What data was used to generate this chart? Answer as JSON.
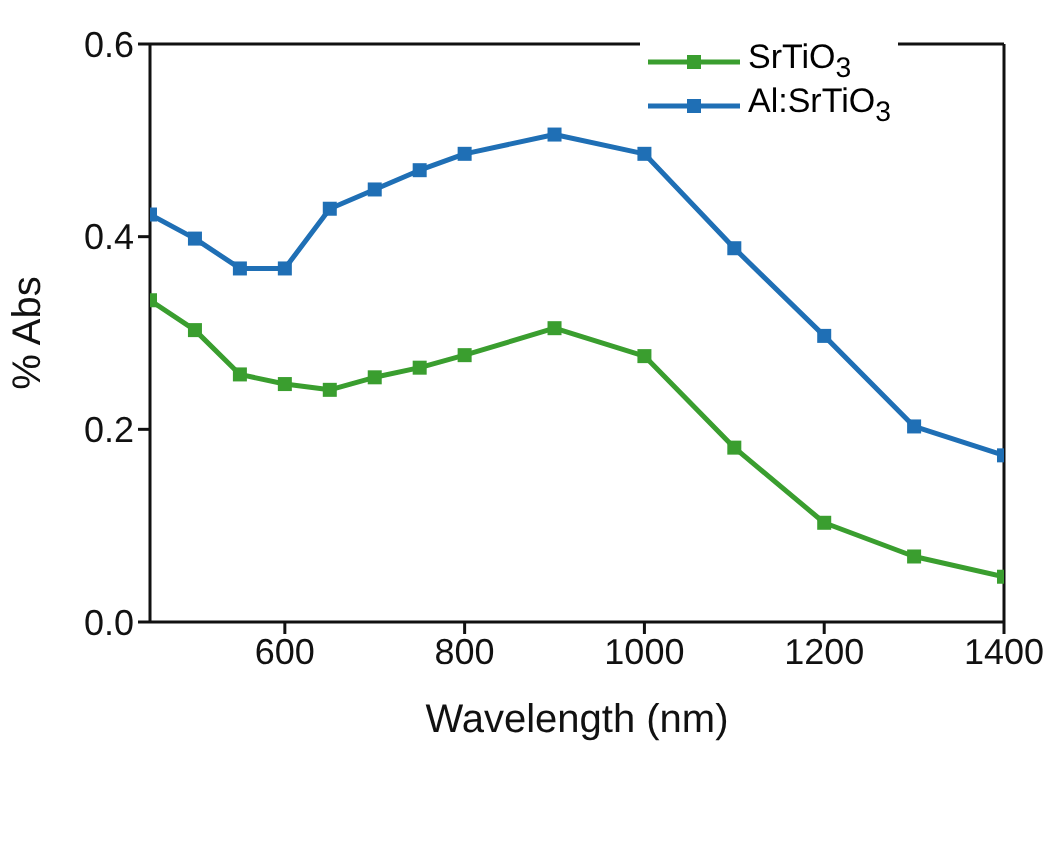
{
  "chart_data": {
    "type": "line",
    "xlabel": "Wavelength (nm)",
    "ylabel": "% Abs",
    "x": [
      450,
      500,
      550,
      600,
      650,
      700,
      750,
      800,
      900,
      1000,
      1100,
      1200,
      1300,
      1400
    ],
    "series": [
      {
        "name": "SrTiO$_{3}$",
        "color": "#3a9e2f",
        "values": [
          0.334,
          0.303,
          0.257,
          0.247,
          0.241,
          0.254,
          0.264,
          0.277,
          0.305,
          0.276,
          0.181,
          0.103,
          0.068,
          0.047
        ]
      },
      {
        "name": "Al:SrTiO$_{3}$",
        "color": "#1f6fb5",
        "values": [
          0.423,
          0.398,
          0.367,
          0.367,
          0.429,
          0.449,
          0.469,
          0.486,
          0.506,
          0.486,
          0.388,
          0.297,
          0.203,
          0.173
        ]
      }
    ],
    "xlim": [
      450,
      1400
    ],
    "xticks": [
      600,
      800,
      1000,
      1200,
      1400
    ],
    "ylim": [
      0,
      0.6
    ],
    "yticks": [
      {
        "value": 0,
        "label": "0.0"
      },
      {
        "value": 0.2,
        "label": "0.2"
      },
      {
        "value": 0.4,
        "label": "0.4"
      },
      {
        "value": 0.6,
        "label": "0.6"
      }
    ],
    "grid": false,
    "legend": "top right",
    "marker": "square",
    "line_style": "solid"
  }
}
